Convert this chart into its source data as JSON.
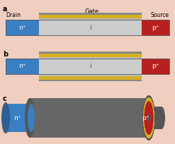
{
  "bg_color": "#f0cfc0",
  "label_a": "a",
  "label_b": "b",
  "label_c": "c",
  "label_drain": "Drain",
  "label_gate": "Gate",
  "label_source": "Source",
  "label_n": "n⁺",
  "label_i": "i",
  "label_p": "p⁺",
  "color_n": "#3a7fc1",
  "color_i": "#cccccc",
  "color_p": "#b82020",
  "color_gate_gray_dark": "#888888",
  "color_gate_yellow": "#d4b020",
  "color_gate_gray_light": "#bbbbbb",
  "color_cyl": "#666666",
  "color_cyl_dark": "#555555"
}
